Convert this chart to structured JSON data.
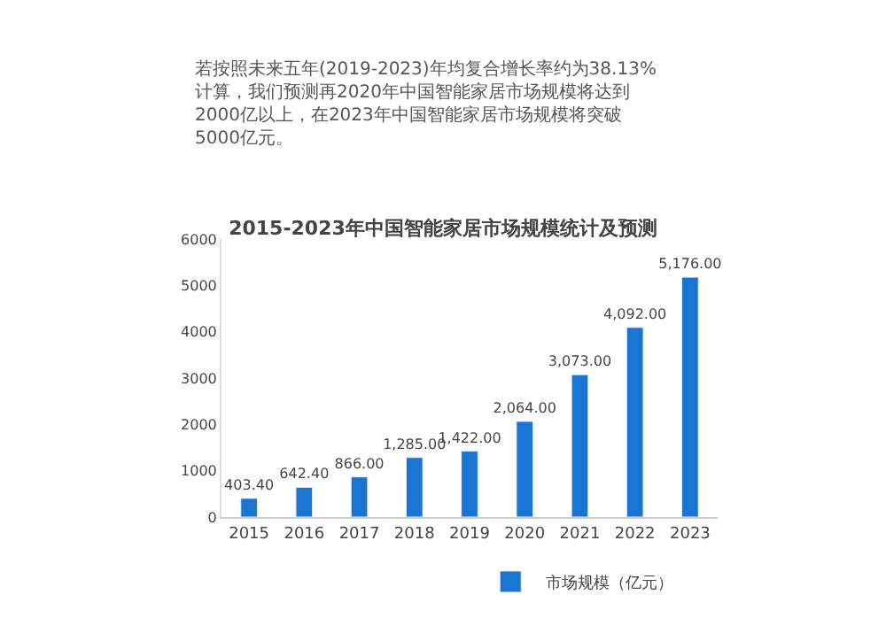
{
  "chart_data": {
    "type": "bar",
    "title": "2015-2023年中国智能家居市场规模统计及预测",
    "annotations": [
      "若按照未来五年(2019-2023)年均复合增长率约为38.13%\n计算，我们预测再2020年中国智能家居市场规模将达到\n2000亿以上，在2023年中国智能家居市场规模将突破\n5000亿元。"
    ],
    "categories": [
      "2015",
      "2016",
      "2017",
      "2018",
      "2019",
      "2020",
      "2021",
      "2022",
      "2023"
    ],
    "series": [
      {
        "name": "市场规模（亿元）",
        "color": "#1a75d2",
        "values": [
          403.4,
          642.4,
          866.0,
          1285.0,
          1422.0,
          2064.0,
          3073.0,
          4092.0,
          5176.0
        ],
        "value_labels": [
          "403.40",
          "642.40",
          "866.00",
          "1,285.00",
          "1,422.00",
          "2,064.00",
          "3,073.00",
          "4,092.00",
          "5,176.00"
        ]
      }
    ],
    "ylim": [
      0,
      6000
    ],
    "yticks": [
      0,
      1000,
      2000,
      3000,
      4000,
      5000,
      6000
    ],
    "grid": false,
    "legend": "bottom"
  }
}
